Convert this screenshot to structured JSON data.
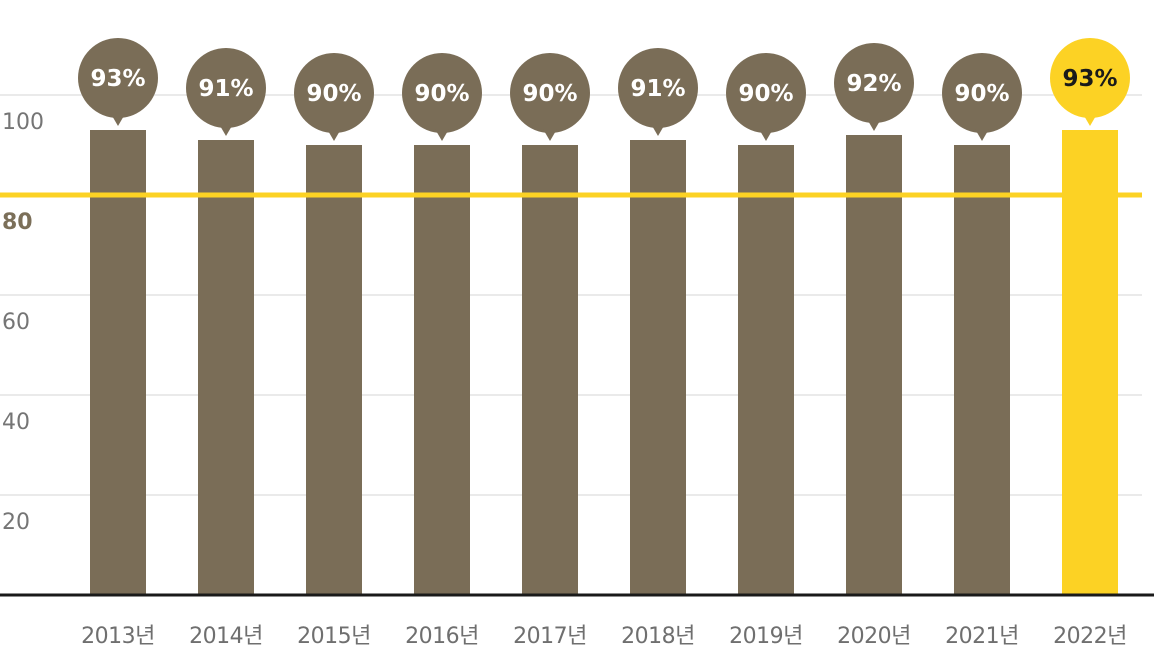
{
  "chart_data": {
    "type": "bar",
    "categories": [
      "2013년",
      "2014년",
      "2015년",
      "2016년",
      "2017년",
      "2018년",
      "2019년",
      "2020년",
      "2021년",
      "2022년"
    ],
    "values": [
      93,
      91,
      90,
      90,
      90,
      91,
      90,
      92,
      90,
      93
    ],
    "data_labels": [
      "93%",
      "91%",
      "90%",
      "90%",
      "90%",
      "91%",
      "90%",
      "92%",
      "90%",
      "93%"
    ],
    "highlight_index": 9,
    "y_ticks": [
      "20",
      "40",
      "60",
      "80",
      "100"
    ],
    "reference_line": 80,
    "title": "",
    "xlabel": "",
    "ylabel": "",
    "ylim": [
      0,
      100
    ],
    "grid": true,
    "colors": {
      "bar": "#7a6d57",
      "highlight": "#fcd224",
      "reference": "#fcd224",
      "bubble_text": "#ffffff",
      "highlight_text": "#1a1a1a"
    }
  }
}
